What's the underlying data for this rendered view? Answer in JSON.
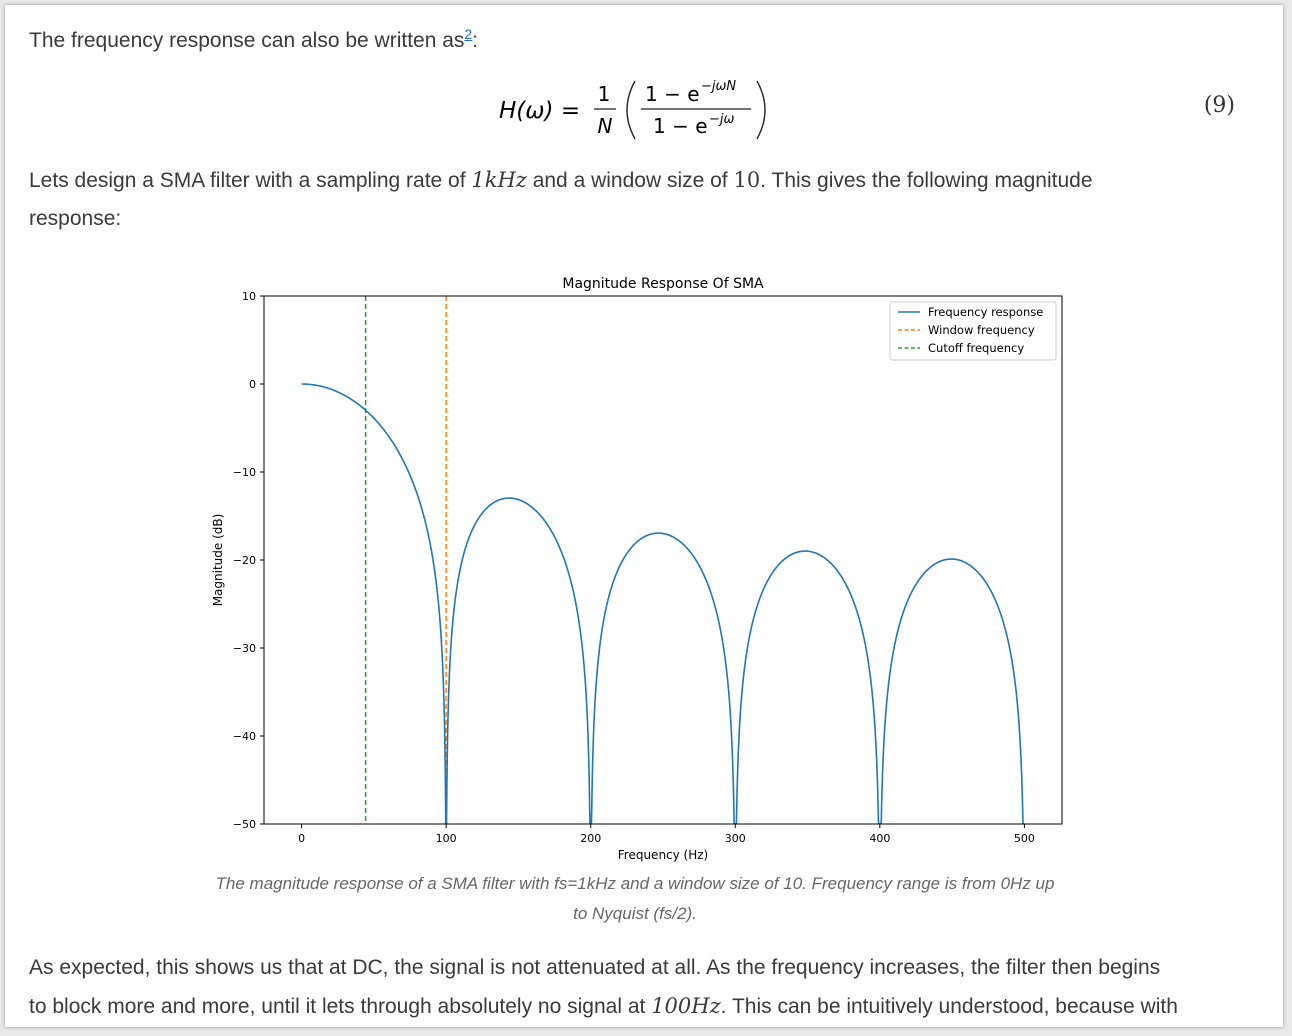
{
  "article": {
    "intro_text": "The frequency response can also be written as",
    "footnote": "2",
    "intro_colon": ":",
    "equation": {
      "lhs": "H(ω) =",
      "one": "1",
      "n": "N",
      "numerator": "1 − e",
      "numerator_exp": "−jωN",
      "denominator": "1 − e",
      "denominator_exp": "−jω",
      "number": "(9)"
    },
    "design_text_1": "Lets design a SMA filter with a sampling rate of ",
    "design_math_1": "1kHz",
    "design_text_2": " and a window size of ",
    "design_math_2": "10",
    "design_text_3": ". This gives the following magnitude",
    "design_text_4": "response:",
    "caption_line1": "The magnitude response of a SMA filter with fs=1kHz and a window size of 10. Frequency range is from 0Hz up",
    "caption_line2": "to Nyquist (fs/2).",
    "bottom_text_1": "As expected, this shows us that at DC, the signal is not attenuated at all. As the frequency increases, the filter then begins",
    "bottom_text_2a": "to block more and more, until it lets through absolutely no signal at ",
    "bottom_math": "100Hz",
    "bottom_text_2b": ". This can be intuitively understood, because with"
  },
  "chart_data": {
    "type": "line",
    "title": "Magnitude Response Of SMA",
    "xlabel": "Frequency (Hz)",
    "ylabel": "Magnitude (dB)",
    "xlim": [
      -26,
      526
    ],
    "ylim": [
      -50,
      10
    ],
    "xticks": [
      0,
      100,
      200,
      300,
      400,
      500
    ],
    "yticks": [
      10,
      0,
      -10,
      -20,
      -30,
      -40,
      -50
    ],
    "grid": false,
    "legend_position": "top-right",
    "sample_rate_hz": 1000,
    "window_size": 10,
    "series": [
      {
        "name": "Frequency response",
        "style": "solid",
        "color": "#1f77b4",
        "x": [
          0,
          20,
          44.3,
          60,
          80,
          100,
          120,
          143,
          170,
          200,
          225,
          248,
          275,
          300,
          325,
          348,
          375,
          400,
          425,
          450,
          475,
          500
        ],
        "y": [
          0,
          -0.6,
          -3.0,
          -5.9,
          -12.5,
          -50,
          -15.6,
          -13.0,
          -17.5,
          -50,
          -19.5,
          -16.9,
          -20.3,
          -50,
          -21.4,
          -19.0,
          -21.8,
          -50,
          -22.2,
          -19.9,
          -22.5,
          -50
        ]
      },
      {
        "name": "Window frequency",
        "style": "dashed",
        "color": "#ff7f0e",
        "x_value": 100
      },
      {
        "name": "Cutoff frequency",
        "style": "dashed",
        "color": "#2ca02c",
        "x_value": 44.3
      }
    ]
  }
}
